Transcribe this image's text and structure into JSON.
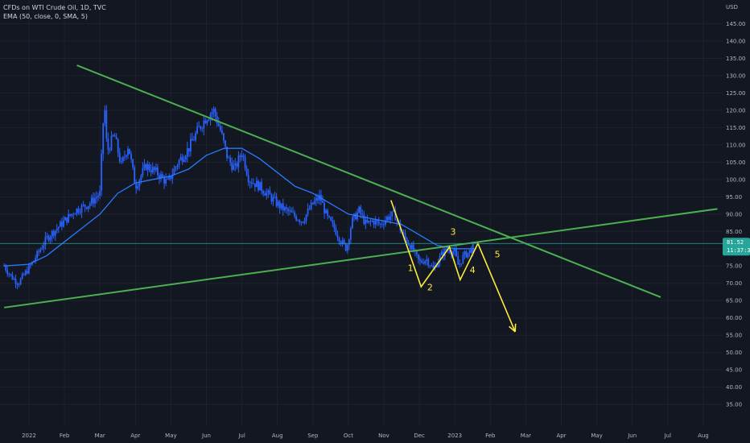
{
  "legend": {
    "title": "CFDs on WTI Crude Oil, 1D, TVC",
    "ema": "EMA (50, close, 0, SMA, 5)"
  },
  "colors": {
    "background": "#131722",
    "candle": "#2962ff",
    "ema": "#2979ff",
    "trendline": "#4caf50",
    "elliott": "#ffeb3b",
    "price_line": "#26a69a",
    "axis_text": "#b2b5be"
  },
  "chart_data": {
    "type": "candlestick",
    "title": "CFDs on WTI Crude Oil, 1D, TVC",
    "currency_label": "USD",
    "ylim": [
      32,
      150
    ],
    "y_ticks": [
      "35.00",
      "40.00",
      "45.00",
      "50.00",
      "55.00",
      "60.00",
      "65.00",
      "70.00",
      "75.00",
      "80.00",
      "85.00",
      "90.00",
      "95.00",
      "100.00",
      "105.00",
      "110.00",
      "115.00",
      "120.00",
      "125.00",
      "130.00",
      "135.00",
      "140.00",
      "145.00"
    ],
    "x_ticks": [
      "2022",
      "Feb",
      "Mar",
      "Apr",
      "May",
      "Jun",
      "Jul",
      "Aug",
      "Sep",
      "Oct",
      "Nov",
      "Dec",
      "2023",
      "Feb",
      "Mar",
      "Apr",
      "May",
      "Jun",
      "Jul",
      "Aug"
    ],
    "x_tick_months": [
      0,
      1,
      2,
      3,
      4,
      5,
      6,
      7,
      8,
      9,
      10,
      11,
      12,
      13,
      14,
      15,
      16,
      17,
      18,
      19
    ],
    "last_price": "81.52",
    "countdown": "11:37:36",
    "price_path": [
      [
        -0.7,
        75
      ],
      [
        -0.5,
        72
      ],
      [
        -0.3,
        70
      ],
      [
        0.1,
        76
      ],
      [
        0.5,
        83
      ],
      [
        0.9,
        87
      ],
      [
        1.3,
        91
      ],
      [
        1.7,
        93
      ],
      [
        2.0,
        96
      ],
      [
        2.12,
        123
      ],
      [
        2.2,
        108
      ],
      [
        2.4,
        113
      ],
      [
        2.6,
        104
      ],
      [
        2.8,
        110
      ],
      [
        3.0,
        98
      ],
      [
        3.3,
        104
      ],
      [
        3.6,
        102
      ],
      [
        3.9,
        99
      ],
      [
        4.2,
        105
      ],
      [
        4.5,
        109
      ],
      [
        4.8,
        115
      ],
      [
        5.0,
        118
      ],
      [
        5.2,
        120
      ],
      [
        5.4,
        114
      ],
      [
        5.6,
        106
      ],
      [
        5.8,
        103
      ],
      [
        6.0,
        108
      ],
      [
        6.2,
        100
      ],
      [
        6.5,
        98
      ],
      [
        6.8,
        95
      ],
      [
        7.1,
        92
      ],
      [
        7.4,
        90
      ],
      [
        7.7,
        88
      ],
      [
        8.0,
        93
      ],
      [
        8.2,
        95
      ],
      [
        8.4,
        89
      ],
      [
        8.6,
        86
      ],
      [
        8.8,
        82
      ],
      [
        8.95,
        80
      ],
      [
        9.1,
        88
      ],
      [
        9.3,
        91
      ],
      [
        9.5,
        87
      ],
      [
        9.7,
        88
      ],
      [
        9.9,
        87
      ],
      [
        10.1,
        89
      ],
      [
        10.3,
        90
      ],
      [
        10.45,
        86
      ],
      [
        10.6,
        83
      ],
      [
        10.8,
        80
      ],
      [
        11.0,
        76
      ],
      [
        11.2,
        77
      ],
      [
        11.4,
        74
      ],
      [
        11.6,
        78
      ],
      [
        11.8,
        80
      ],
      [
        12.0,
        79
      ],
      [
        12.1,
        75
      ],
      [
        12.25,
        78
      ],
      [
        12.4,
        79
      ],
      [
        12.55,
        81
      ]
    ],
    "ema_50": [
      [
        -0.7,
        75
      ],
      [
        0.0,
        75.5
      ],
      [
        0.5,
        78
      ],
      [
        1.0,
        82
      ],
      [
        1.5,
        86
      ],
      [
        2.0,
        90
      ],
      [
        2.5,
        96
      ],
      [
        3.0,
        99
      ],
      [
        3.5,
        100
      ],
      [
        4.0,
        101
      ],
      [
        4.5,
        103
      ],
      [
        5.0,
        107
      ],
      [
        5.5,
        109
      ],
      [
        6.0,
        109
      ],
      [
        6.5,
        106
      ],
      [
        7.0,
        102
      ],
      [
        7.5,
        98
      ],
      [
        8.0,
        96
      ],
      [
        8.5,
        93
      ],
      [
        9.0,
        90
      ],
      [
        9.5,
        89
      ],
      [
        10.0,
        88
      ],
      [
        10.5,
        87
      ],
      [
        11.0,
        84
      ],
      [
        11.5,
        81
      ],
      [
        12.0,
        80
      ],
      [
        12.55,
        80
      ]
    ],
    "trendlines": [
      {
        "name": "descending-resistance",
        "points": [
          [
            1.35,
            133
          ],
          [
            17.8,
            66
          ]
        ]
      },
      {
        "name": "ascending-support",
        "points": [
          [
            -0.7,
            63
          ],
          [
            19.4,
            91.5
          ]
        ]
      }
    ],
    "elliott_wave": {
      "points": [
        [
          10.2,
          94
        ],
        [
          11.05,
          69
        ],
        [
          11.85,
          80.5
        ],
        [
          12.15,
          71
        ],
        [
          12.65,
          81.5
        ],
        [
          13.7,
          56
        ]
      ],
      "labels": [
        {
          "text": "1",
          "at": [
            10.75,
            73.5
          ]
        },
        {
          "text": "2",
          "at": [
            11.3,
            68
          ]
        },
        {
          "text": "3",
          "at": [
            11.95,
            84
          ]
        },
        {
          "text": "4",
          "at": [
            12.5,
            73
          ]
        },
        {
          "text": "5",
          "at": [
            13.2,
            77.5
          ]
        }
      ]
    }
  }
}
